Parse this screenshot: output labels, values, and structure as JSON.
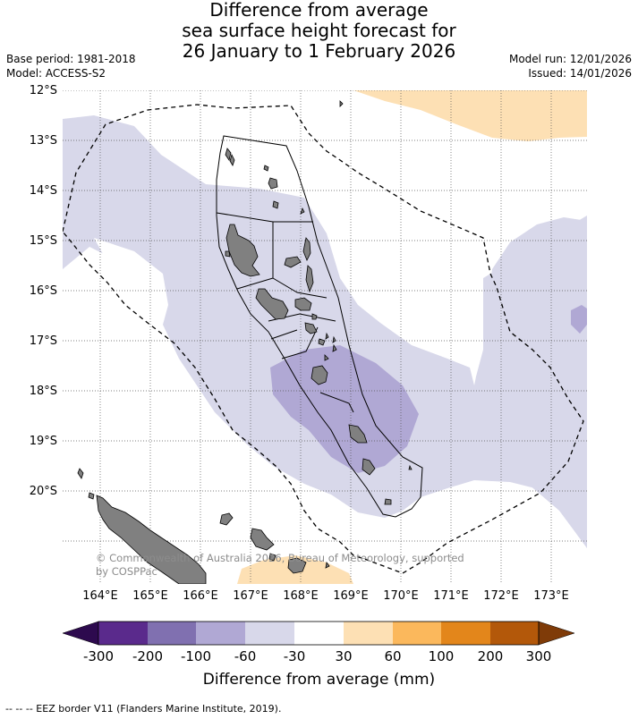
{
  "title": {
    "line1": "Difference from average",
    "line2": "sea surface height forecast for",
    "line3": "26 January to 1 February 2026"
  },
  "meta": {
    "base_period": "Base period: 1981-2018",
    "model": "Model: ACCESS-S2",
    "model_run": "Model run: 12/01/2026",
    "issued": "Issued: 14/01/2026"
  },
  "lat_labels": [
    "12°S",
    "13°S",
    "14°S",
    "15°S",
    "16°S",
    "17°S",
    "18°S",
    "19°S",
    "20°S"
  ],
  "lon_labels": [
    "164°E",
    "165°E",
    "166°E",
    "167°E",
    "168°E",
    "169°E",
    "170°E",
    "171°E",
    "172°E",
    "173°E"
  ],
  "copyright": {
    "line1": "© Commonwealth of Australia 2026, Bureau of Meteorology, supported",
    "line2": "by COSPPac"
  },
  "colorbar": {
    "title": "Difference from average (mm)",
    "ticks": [
      "-300",
      "-200",
      "-100",
      "-60",
      "-30",
      "30",
      "60",
      "100",
      "200",
      "300"
    ],
    "colors": [
      "#2d0a4e",
      "#5a2a8c",
      "#8070b0",
      "#b0a8d4",
      "#d8d8ea",
      "#ffffff",
      "#fde0b4",
      "#fbb85c",
      "#e3861b",
      "#b3580a",
      "#7f3b08"
    ]
  },
  "legend_colors": {
    "land": "#808080",
    "eez_line": "#000000"
  },
  "footer": "--  --  -- EEZ border V11 (Flanders Marine Institute, 2019)."
}
